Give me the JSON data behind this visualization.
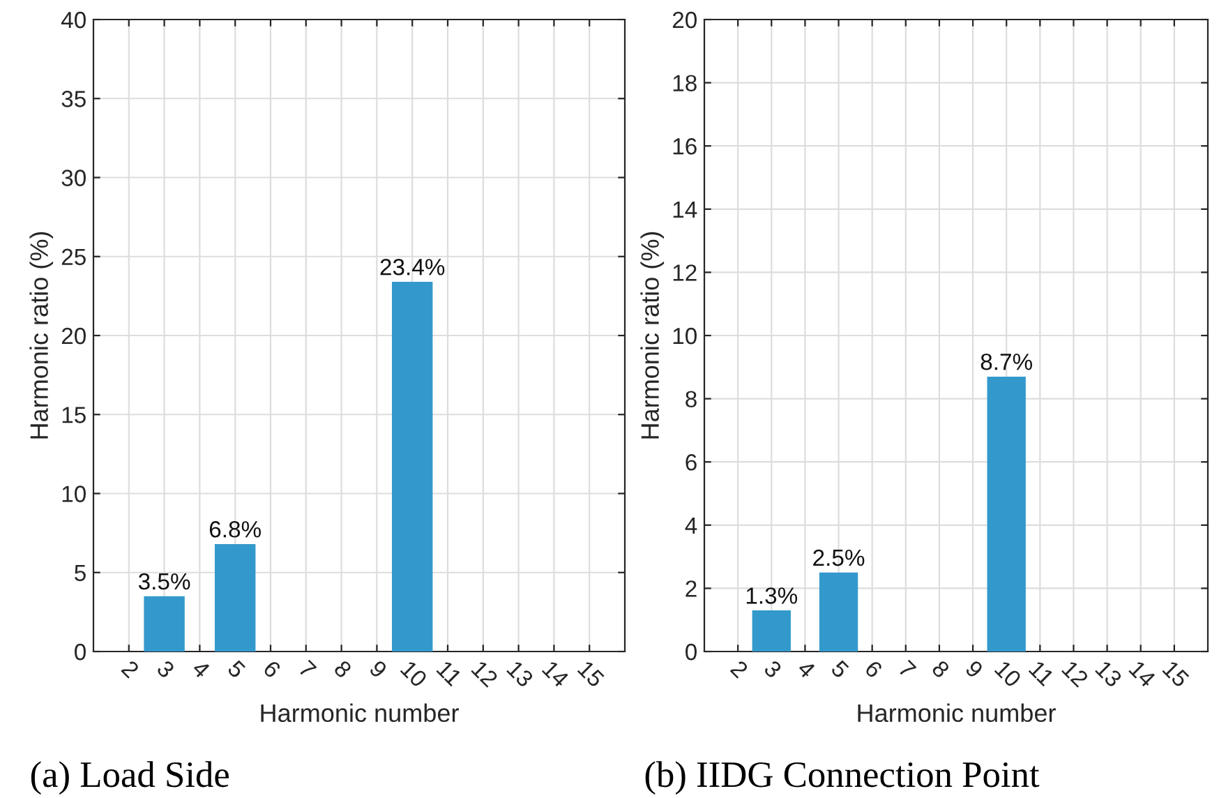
{
  "chart_data": [
    {
      "type": "bar",
      "xlabel": "Harmonic number",
      "ylabel": "Harmonic ratio (%)",
      "annotations": [
        "(a) Load Side"
      ],
      "x": [
        3,
        5,
        10
      ],
      "values": [
        3.5,
        6.8,
        23.4
      ],
      "value_labels": [
        "3.5%",
        "6.8%",
        "23.4%"
      ],
      "color": "#3399cc",
      "xlim": [
        1,
        16
      ],
      "xticks": [
        2,
        3,
        4,
        5,
        6,
        7,
        8,
        9,
        10,
        11,
        12,
        13,
        14,
        15
      ],
      "ylim": [
        0,
        40
      ],
      "yticks": [
        0,
        5,
        10,
        15,
        20,
        25,
        30,
        35,
        40
      ],
      "grid": true
    },
    {
      "type": "bar",
      "xlabel": "Harmonic number",
      "ylabel": "Harmonic ratio (%)",
      "annotations": [
        "(b) IIDG Connection Point"
      ],
      "x": [
        3,
        5,
        10
      ],
      "values": [
        1.3,
        2.5,
        8.7
      ],
      "value_labels": [
        "1.3%",
        "2.5%",
        "8.7%"
      ],
      "color": "#3399cc",
      "xlim": [
        1,
        16
      ],
      "xticks": [
        2,
        3,
        4,
        5,
        6,
        7,
        8,
        9,
        10,
        11,
        12,
        13,
        14,
        15
      ],
      "ylim": [
        0,
        20
      ],
      "yticks": [
        0,
        2,
        4,
        6,
        8,
        10,
        12,
        14,
        16,
        18,
        20
      ],
      "grid": true
    }
  ]
}
